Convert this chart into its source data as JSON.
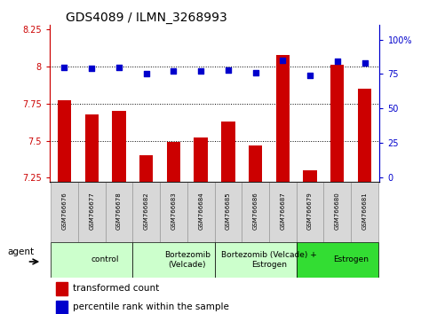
{
  "title": "GDS4089 / ILMN_3268993",
  "samples": [
    "GSM766676",
    "GSM766677",
    "GSM766678",
    "GSM766682",
    "GSM766683",
    "GSM766684",
    "GSM766685",
    "GSM766686",
    "GSM766687",
    "GSM766679",
    "GSM766680",
    "GSM766681"
  ],
  "transformed_count": [
    7.77,
    7.68,
    7.7,
    7.4,
    7.49,
    7.52,
    7.63,
    7.47,
    8.08,
    7.3,
    8.01,
    7.85
  ],
  "percentile_rank": [
    80,
    79,
    80,
    75,
    77,
    77,
    78,
    76,
    85,
    74,
    84,
    83
  ],
  "groups": [
    {
      "label": "control",
      "start": 0,
      "end": 3,
      "color": "#ccffcc"
    },
    {
      "label": "Bortezomib\n(Velcade)",
      "start": 3,
      "end": 6,
      "color": "#ccffcc"
    },
    {
      "label": "Bortezomib (Velcade) +\nEstrogen",
      "start": 6,
      "end": 9,
      "color": "#ccffcc"
    },
    {
      "label": "Estrogen",
      "start": 9,
      "end": 12,
      "color": "#33dd33"
    }
  ],
  "ylim_left": [
    7.22,
    8.28
  ],
  "ylim_right": [
    -3.5,
    110.5
  ],
  "yticks_left": [
    7.25,
    7.5,
    7.75,
    8.0,
    8.25
  ],
  "yticks_right": [
    0,
    25,
    50,
    75,
    100
  ],
  "ytick_labels_left": [
    "7.25",
    "7.5",
    "7.75",
    "8",
    "8.25"
  ],
  "ytick_labels_right": [
    "0",
    "25",
    "50",
    "75",
    "100%"
  ],
  "bar_color": "#cc0000",
  "dot_color": "#0000cc",
  "bar_width": 0.5,
  "agent_label": "agent",
  "legend_bar_label": "transformed count",
  "legend_dot_label": "percentile rank within the sample"
}
